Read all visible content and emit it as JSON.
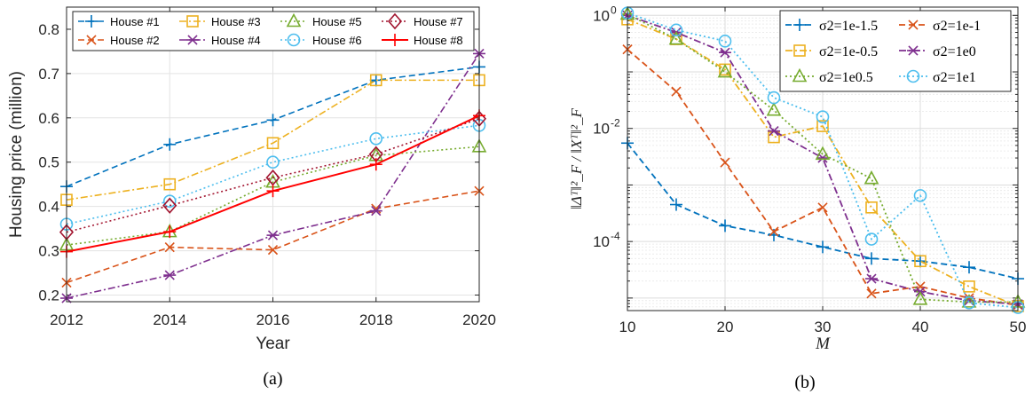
{
  "chart_data": [
    {
      "type": "line",
      "caption": "(a)",
      "xlabel": "Year",
      "ylabel": "Housing price (million)",
      "x": [
        2012,
        2014,
        2016,
        2018,
        2020
      ],
      "xticks": [
        2012,
        2014,
        2016,
        2018,
        2020
      ],
      "xlim": [
        2012,
        2020
      ],
      "ylim": [
        0.185,
        0.85
      ],
      "yticks": [
        0.2,
        0.3,
        0.4,
        0.5,
        0.6,
        0.7,
        0.8
      ],
      "ytick_labels": [
        "0.2",
        "0.3",
        "0.4",
        "0.5",
        "0.6",
        "0.7",
        "0.8"
      ],
      "grid": true,
      "legend_position": "top",
      "series": [
        {
          "name": "House #1",
          "color": "#0072BD",
          "marker": "plus",
          "dash": "dashed",
          "values": [
            0.445,
            0.54,
            0.595,
            0.685,
            0.715
          ]
        },
        {
          "name": "House #2",
          "color": "#D95319",
          "marker": "x",
          "dash": "dashed",
          "values": [
            0.228,
            0.308,
            0.302,
            0.395,
            0.435
          ]
        },
        {
          "name": "House #3",
          "color": "#EDB120",
          "marker": "square",
          "dash": "dashdot",
          "values": [
            0.415,
            0.45,
            0.543,
            0.685,
            0.685
          ]
        },
        {
          "name": "House #4",
          "color": "#7E2F8E",
          "marker": "asterisk",
          "dash": "dashdot",
          "values": [
            0.193,
            0.245,
            0.335,
            0.39,
            0.745
          ]
        },
        {
          "name": "House #5",
          "color": "#77AC30",
          "marker": "triangle",
          "dash": "dotted",
          "values": [
            0.313,
            0.343,
            0.455,
            0.515,
            0.535
          ]
        },
        {
          "name": "House #6",
          "color": "#4DBEEE",
          "marker": "circle",
          "dash": "dotted",
          "values": [
            0.36,
            0.412,
            0.5,
            0.553,
            0.583
          ]
        },
        {
          "name": "House #7",
          "color": "#A2142F",
          "marker": "diamond",
          "dash": "dotted",
          "values": [
            0.342,
            0.402,
            0.465,
            0.518,
            0.598
          ]
        },
        {
          "name": "House #8",
          "color": "#FF0000",
          "marker": "plus",
          "dash": "solid",
          "values": [
            0.298,
            0.343,
            0.435,
            0.495,
            0.605
          ]
        }
      ]
    },
    {
      "type": "line",
      "caption": "(b)",
      "xlabel": "M",
      "ylabel": "‖Δᵀ‖²_F / ‖Xᵀ‖²_F",
      "x": [
        10,
        15,
        20,
        25,
        30,
        35,
        40,
        45,
        50
      ],
      "xticks": [
        10,
        20,
        30,
        40,
        50
      ],
      "xlim": [
        10,
        50
      ],
      "yscale": "log",
      "ylim": [
        6e-06,
        1.4
      ],
      "yticks": [
        0.0001,
        0.01,
        1
      ],
      "ytick_labels": [
        "10",
        "10",
        "10"
      ],
      "ytick_exponents": [
        "-4",
        "-2",
        "0"
      ],
      "grid": true,
      "legend_position": "top-right",
      "series": [
        {
          "name": "σ2=1e-1.5",
          "color": "#0072BD",
          "marker": "plus",
          "dash": "dashed",
          "values": [
            0.0055,
            0.00045,
            0.00019,
            0.00013,
            8e-05,
            5e-05,
            4.5e-05,
            3.5e-05,
            2.2e-05
          ]
        },
        {
          "name": "σ2=1e-1",
          "color": "#D95319",
          "marker": "x",
          "dash": "dashed",
          "values": [
            0.25,
            0.045,
            0.0025,
            0.00015,
            0.0004,
            1.2e-05,
            1.6e-05,
            1e-05,
            7.5e-06
          ]
        },
        {
          "name": "σ2=1e-0.5",
          "color": "#EDB120",
          "marker": "square",
          "dash": "dashdot",
          "values": [
            0.85,
            0.38,
            0.11,
            0.007,
            0.011,
            0.0004,
            4.5e-05,
            1.6e-05,
            7.2e-06
          ]
        },
        {
          "name": "σ2=1e0",
          "color": "#7E2F8E",
          "marker": "asterisk",
          "dash": "dashdot",
          "values": [
            1.0,
            0.5,
            0.22,
            0.009,
            0.003,
            2.2e-05,
            1.3e-05,
            9e-06,
            7.8e-06
          ]
        },
        {
          "name": "σ2=1e0.5",
          "color": "#77AC30",
          "marker": "triangle",
          "dash": "dotted",
          "values": [
            1.05,
            0.38,
            0.1,
            0.021,
            0.0035,
            0.0013,
            9.5e-06,
            8.5e-06,
            8.5e-06
          ]
        },
        {
          "name": "σ2=1e1",
          "color": "#4DBEEE",
          "marker": "circle",
          "dash": "dotted",
          "values": [
            1.1,
            0.55,
            0.35,
            0.035,
            0.016,
            0.00011,
            0.00065,
            8.2e-06,
            6.8e-06
          ]
        }
      ]
    }
  ]
}
